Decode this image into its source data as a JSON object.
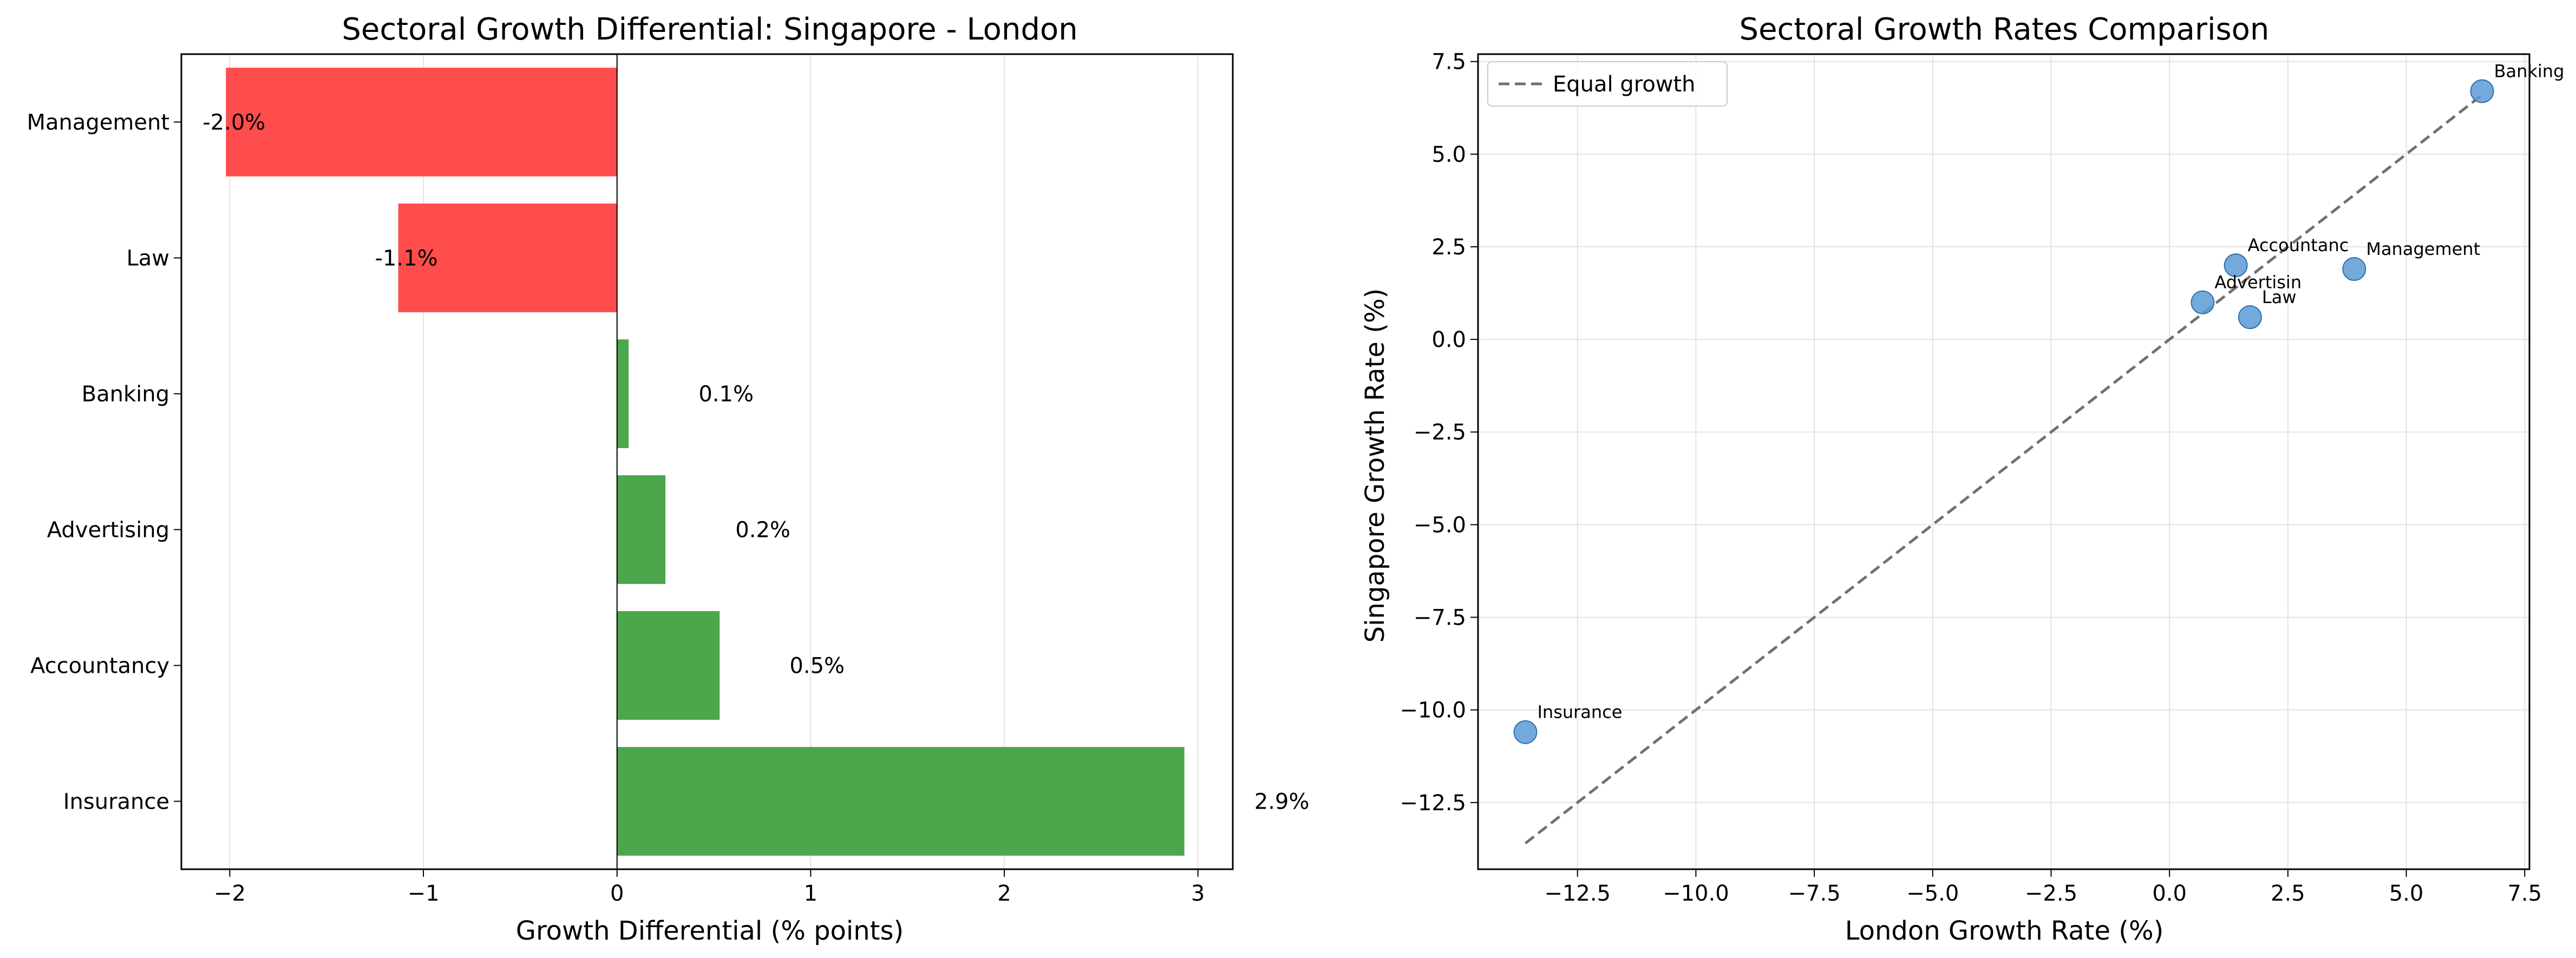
{
  "chart_data": [
    {
      "type": "bar",
      "orientation": "horizontal",
      "title": "Sectoral Growth Differential: Singapore - London",
      "xlabel": "Growth Differential (% points)",
      "ylabel": "",
      "categories": [
        "Insurance",
        "Accountancy",
        "Advertising",
        "Banking",
        "Law",
        "Management"
      ],
      "values": [
        2.93,
        0.53,
        0.25,
        0.06,
        -1.13,
        -2.02
      ],
      "value_labels": [
        "2.9%",
        "0.5%",
        "0.2%",
        "0.1%",
        "-1.1%",
        "-2.0%"
      ],
      "xlim": [
        -2.25,
        3.18
      ],
      "xticks": [
        -2,
        -1,
        0,
        1,
        2,
        3
      ],
      "xtick_labels": [
        "−2",
        "−1",
        "0",
        "1",
        "2",
        "3"
      ],
      "grid": "x",
      "colors": {
        "positive": "#4ca64c",
        "negative": "#ff4d4d"
      }
    },
    {
      "type": "scatter",
      "title": "Sectoral Growth Rates Comparison",
      "xlabel": "London Growth Rate (%)",
      "ylabel": "Singapore Growth Rate (%)",
      "points": [
        {
          "label": "Banking",
          "x": 6.6,
          "y": 6.7
        },
        {
          "label": "Accountanc",
          "x": 1.4,
          "y": 2.0
        },
        {
          "label": "Management",
          "x": 3.9,
          "y": 1.9
        },
        {
          "label": "Advertisin",
          "x": 0.7,
          "y": 1.0
        },
        {
          "label": "Law",
          "x": 1.7,
          "y": 0.6
        },
        {
          "label": "Insurance",
          "x": -13.6,
          "y": -10.6
        }
      ],
      "reference_line": {
        "label": "Equal growth",
        "from": [
          -13.6,
          -13.6
        ],
        "to": [
          6.6,
          6.6
        ]
      },
      "xlim": [
        -14.6,
        7.6
      ],
      "ylim": [
        -14.3,
        7.7
      ],
      "xticks": [
        -12.5,
        -10.0,
        -7.5,
        -5.0,
        -2.5,
        0.0,
        2.5,
        5.0,
        7.5
      ],
      "xtick_labels": [
        "−12.5",
        "−10.0",
        "−7.5",
        "−5.0",
        "−2.5",
        "0.0",
        "2.5",
        "5.0",
        "7.5"
      ],
      "yticks": [
        -12.5,
        -10.0,
        -7.5,
        -5.0,
        -2.5,
        0.0,
        2.5,
        5.0,
        7.5
      ],
      "ytick_labels": [
        "−12.5",
        "−10.0",
        "−7.5",
        "−5.0",
        "−2.5",
        "0.0",
        "2.5",
        "5.0",
        "7.5"
      ],
      "grid": true,
      "legend": "top-left",
      "colors": {
        "marker": "#5b9bd5",
        "reference_line": "#707070"
      }
    }
  ]
}
